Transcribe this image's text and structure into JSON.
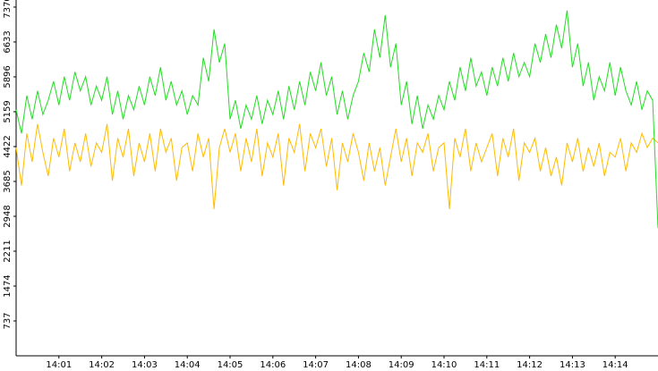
{
  "chart_data": {
    "type": "line",
    "x": [
      0,
      0.125,
      0.25,
      0.375,
      0.5,
      0.625,
      0.75,
      0.875,
      1,
      1.125,
      1.25,
      1.375,
      1.5,
      1.625,
      1.75,
      1.875,
      2,
      2.125,
      2.25,
      2.375,
      2.5,
      2.625,
      2.75,
      2.875,
      3,
      3.125,
      3.25,
      3.375,
      3.5,
      3.625,
      3.75,
      3.875,
      4,
      4.125,
      4.25,
      4.375,
      4.5,
      4.625,
      4.75,
      4.875,
      5,
      5.125,
      5.25,
      5.375,
      5.5,
      5.625,
      5.75,
      5.875,
      6,
      6.125,
      6.25,
      6.375,
      6.5,
      6.625,
      6.75,
      6.875,
      7,
      7.125,
      7.25,
      7.375,
      7.5,
      7.625,
      7.75,
      7.875,
      8,
      8.125,
      8.25,
      8.375,
      8.5,
      8.625,
      8.75,
      8.875,
      9,
      9.125,
      9.25,
      9.375,
      9.5,
      9.625,
      9.75,
      9.875,
      10,
      10.125,
      10.25,
      10.375,
      10.5,
      10.625,
      10.75,
      10.875,
      11,
      11.125,
      11.25,
      11.375,
      11.5,
      11.625,
      11.75,
      11.875,
      12,
      12.125,
      12.25,
      12.375,
      12.5,
      12.625,
      12.75,
      12.875,
      13,
      13.125,
      13.25,
      13.375,
      13.5,
      13.625,
      13.75,
      13.875,
      14,
      14.125,
      14.25,
      14.375,
      14.5,
      14.625,
      14.75,
      14.875,
      15
    ],
    "series": [
      {
        "color": "#22dd22",
        "values": [
          5200,
          4700,
          5500,
          5000,
          5600,
          5100,
          5400,
          5800,
          5300,
          5900,
          5400,
          6000,
          5600,
          5900,
          5300,
          5700,
          5400,
          5900,
          5100,
          5600,
          5000,
          5500,
          5200,
          5700,
          5300,
          5900,
          5500,
          6100,
          5400,
          5800,
          5300,
          5600,
          5100,
          5500,
          5300,
          6300,
          5800,
          6900,
          6200,
          6600,
          5000,
          5400,
          4800,
          5300,
          5000,
          5500,
          4900,
          5400,
          5100,
          5600,
          5000,
          5700,
          5200,
          5800,
          5300,
          6000,
          5600,
          6200,
          5500,
          5900,
          5100,
          5600,
          5000,
          5500,
          5800,
          6400,
          6000,
          6900,
          6300,
          7200,
          6100,
          6600,
          5300,
          5800,
          4900,
          5500,
          4800,
          5300,
          5000,
          5500,
          5200,
          5800,
          5400,
          6100,
          5600,
          6300,
          5700,
          6000,
          5500,
          6100,
          5700,
          6300,
          5800,
          6400,
          5900,
          6200,
          5900,
          6600,
          6200,
          6800,
          6300,
          7000,
          6500,
          7300,
          6100,
          6600,
          5700,
          6200,
          5400,
          5900,
          5600,
          6200,
          5500,
          6100,
          5600,
          5300,
          5800,
          5200,
          5600,
          5400,
          2700
        ]
      },
      {
        "color": "#ffbb00",
        "values": [
          4400,
          3600,
          4700,
          4100,
          4900,
          4300,
          3800,
          4600,
          4200,
          4800,
          3900,
          4500,
          4100,
          4700,
          4000,
          4500,
          4300,
          4900,
          3700,
          4600,
          4200,
          4800,
          3800,
          4500,
          4100,
          4700,
          3900,
          4800,
          4300,
          4600,
          3700,
          4400,
          4500,
          3900,
          4700,
          4200,
          4600,
          3100,
          4400,
          4800,
          4300,
          4700,
          3900,
          4600,
          4100,
          4800,
          3800,
          4500,
          4200,
          4700,
          3600,
          4600,
          4300,
          4900,
          3900,
          4700,
          4400,
          4800,
          4000,
          4600,
          3500,
          4500,
          4100,
          4700,
          4300,
          3700,
          4500,
          3900,
          4400,
          3600,
          4200,
          4800,
          4100,
          4600,
          3800,
          4500,
          4300,
          4700,
          3900,
          4400,
          4500,
          3100,
          4600,
          4200,
          4800,
          3900,
          4500,
          4100,
          4400,
          4700,
          3800,
          4600,
          4200,
          4800,
          3700,
          4500,
          4300,
          4600,
          3900,
          4400,
          3800,
          4200,
          3600,
          4500,
          4100,
          4600,
          3900,
          4400,
          4000,
          4500,
          3800,
          4300,
          4200,
          4600,
          3900,
          4500,
          4300,
          4700,
          4400,
          4600,
          4500
        ]
      }
    ],
    "xlim": [
      0,
      15
    ],
    "xticks": [
      {
        "value": 1,
        "label": "14:01"
      },
      {
        "value": 2,
        "label": "14:02"
      },
      {
        "value": 3,
        "label": "14:03"
      },
      {
        "value": 4,
        "label": "14:04"
      },
      {
        "value": 5,
        "label": "14:05"
      },
      {
        "value": 6,
        "label": "14:06"
      },
      {
        "value": 7,
        "label": "14:07"
      },
      {
        "value": 8,
        "label": "14:08"
      },
      {
        "value": 9,
        "label": "14:09"
      },
      {
        "value": 10,
        "label": "14:10"
      },
      {
        "value": 11,
        "label": "14:11"
      },
      {
        "value": 12,
        "label": "14:12"
      },
      {
        "value": 13,
        "label": "14:13"
      },
      {
        "value": 14,
        "label": "14:14"
      }
    ],
    "ylim": [
      0,
      7520
    ],
    "yticks": [
      737,
      1474,
      2211,
      2948,
      3685,
      4422,
      5159,
      5896,
      6633,
      7370
    ]
  }
}
